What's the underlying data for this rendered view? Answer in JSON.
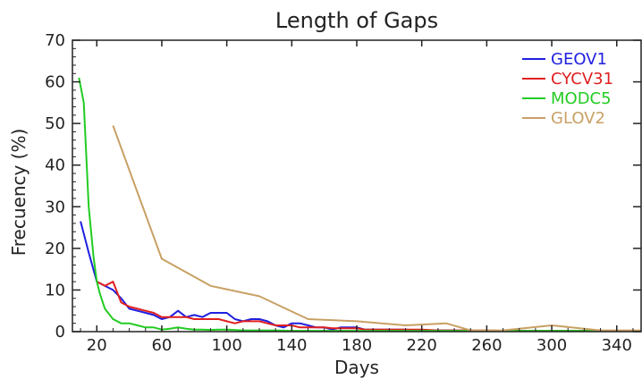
{
  "chart_data": {
    "type": "line",
    "title": "Length of Gaps",
    "xlabel": "Days",
    "ylabel": "Frecuency (%)",
    "xlim": [
      5,
      355
    ],
    "ylim": [
      0,
      70
    ],
    "xticks": [
      20,
      60,
      100,
      140,
      180,
      220,
      260,
      300,
      340
    ],
    "yticks": [
      0,
      10,
      20,
      30,
      40,
      50,
      60,
      70
    ],
    "grid": false,
    "legend_position": "top-right",
    "series": [
      {
        "name": "GEOV1",
        "color": "#1f1fe0",
        "x": [
          10,
          15,
          20,
          25,
          30,
          35,
          40,
          45,
          50,
          55,
          60,
          65,
          70,
          75,
          80,
          85,
          90,
          95,
          100,
          105,
          110,
          115,
          120,
          125,
          130,
          135,
          140,
          145,
          150,
          155,
          160,
          165,
          170,
          175,
          180,
          185,
          190,
          195,
          200,
          210,
          220,
          230,
          240,
          250,
          260,
          270,
          280,
          290,
          300,
          310,
          320,
          330,
          340,
          350,
          355
        ],
        "y": [
          26.5,
          19,
          12,
          11,
          10,
          8,
          5.5,
          5,
          4.5,
          4,
          3,
          3.5,
          5,
          3.5,
          4,
          3.5,
          4.5,
          4.5,
          4.5,
          3,
          2.5,
          3,
          3,
          2.5,
          1.5,
          1,
          2,
          2,
          1.5,
          1,
          1,
          0.5,
          1,
          1,
          1,
          0.5,
          0.5,
          0.5,
          0.5,
          0.5,
          0.3,
          0.3,
          0.3,
          0.2,
          0.2,
          0.2,
          0.2,
          0.2,
          0.2,
          0.2,
          0.2,
          0.2,
          0.2,
          0.2,
          0.2
        ]
      },
      {
        "name": "CYCV31",
        "color": "#e01f1f",
        "x": [
          20,
          25,
          30,
          35,
          40,
          45,
          50,
          55,
          60,
          65,
          70,
          75,
          80,
          85,
          90,
          95,
          100,
          105,
          110,
          115,
          120,
          125,
          130,
          135,
          140,
          145,
          150,
          155,
          160,
          165,
          170,
          175,
          180,
          185,
          190,
          200,
          210,
          220,
          230,
          240,
          250,
          260,
          270,
          280,
          290,
          300,
          310,
          320,
          330,
          340,
          350,
          355
        ],
        "y": [
          12,
          11,
          12,
          7,
          6,
          5.5,
          5,
          4.5,
          3.5,
          3.5,
          3.5,
          3.5,
          3,
          3,
          3,
          3,
          2.5,
          2,
          2.5,
          2.5,
          2.5,
          2,
          1.5,
          1.5,
          1.5,
          1,
          1,
          1,
          1,
          0.8,
          0.8,
          0.8,
          0.8,
          0.5,
          0.5,
          0.5,
          0.5,
          0.5,
          0.3,
          0.3,
          0.3,
          0.3,
          0.2,
          0.2,
          0.2,
          0.2,
          0.2,
          0.2,
          0.2,
          0.2,
          0.2,
          0.2
        ]
      },
      {
        "name": "MODC5",
        "color": "#22cc22",
        "x": [
          9,
          12,
          15,
          18,
          20,
          22,
          25,
          30,
          35,
          40,
          45,
          50,
          55,
          60,
          65,
          70,
          75,
          80,
          85,
          90,
          95,
          100,
          110,
          120,
          130,
          140,
          150,
          160,
          170,
          180,
          200,
          220,
          240,
          260,
          280,
          300,
          320,
          340,
          355
        ],
        "y": [
          61,
          55,
          30,
          18,
          12,
          9,
          5.5,
          3,
          2,
          2,
          1.5,
          1,
          1,
          0.5,
          0.7,
          1,
          0.7,
          0.5,
          0.5,
          0.4,
          0.5,
          0.5,
          0.3,
          0.3,
          0.3,
          0.2,
          0.2,
          0.2,
          0.2,
          0.2,
          0.2,
          0.2,
          0.2,
          0.2,
          0.2,
          0.2,
          0.2,
          0.2,
          0.2
        ]
      },
      {
        "name": "GLOV2",
        "color": "#c8a064",
        "x": [
          30,
          60,
          90,
          120,
          150,
          180,
          210,
          235,
          250,
          270,
          300,
          330,
          355
        ],
        "y": [
          49.5,
          17.5,
          11,
          8.5,
          3,
          2.5,
          1.5,
          2,
          0.3,
          0.3,
          1.5,
          0.3,
          0.3
        ]
      }
    ]
  }
}
